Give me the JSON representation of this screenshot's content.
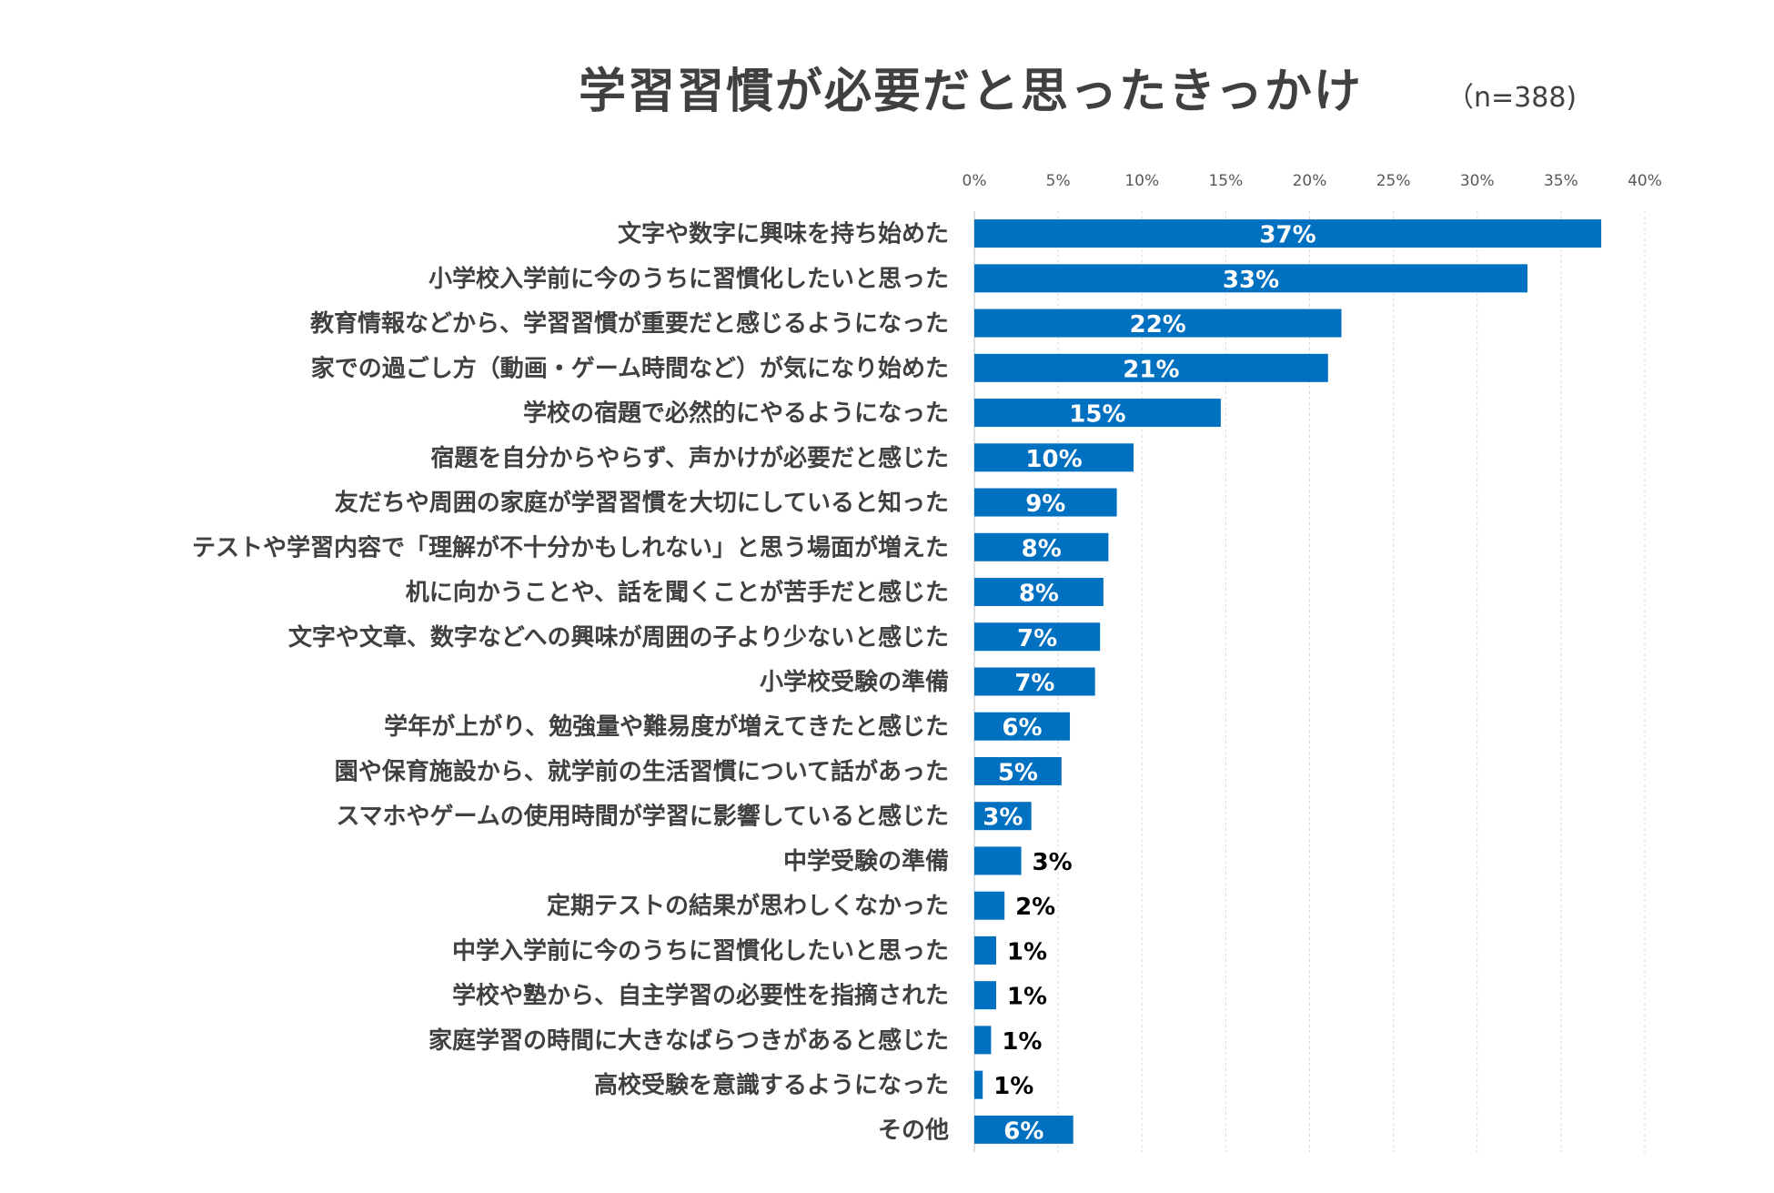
{
  "chart_data": {
    "type": "bar",
    "orientation": "horizontal",
    "title": "学習習慣が必要だと思ったきっかけ",
    "subtitle": "（n=388)",
    "xlim": [
      0,
      40
    ],
    "x_ticks": [
      "0%",
      "5%",
      "10%",
      "15%",
      "20%",
      "25%",
      "30%",
      "35%",
      "40%"
    ],
    "grid": true,
    "bar_color": "#0070C0",
    "categories": [
      "文字や数字に興味を持ち始めた",
      "小学校入学前に今のうちに習慣化したいと思った",
      "教育情報などから、学習習慣が重要だと感じるようになった",
      "家での過ごし方（動画・ゲーム時間など）が気になり始めた",
      "学校の宿題で必然的にやるようになった",
      "宿題を自分からやらず、声かけが必要だと感じた",
      "友だちや周囲の家庭が学習習慣を大切にしていると知った",
      "テストや学習内容で「理解が不十分かもしれない」と思う場面が増えた",
      "机に向かうことや、話を聞くことが苦手だと感じた",
      "文字や文章、数字などへの興味が周囲の子より少ないと感じた",
      "小学校受験の準備",
      "学年が上がり、勉強量や難易度が増えてきたと感じた",
      "園や保育施設から、就学前の生活習慣について話があった",
      "スマホやゲームの使用時間が学習に影響していると感じた",
      "中学受験の準備",
      "定期テストの結果が思わしくなかった",
      "中学入学前に今のうちに習慣化したいと思った",
      "学校や塾から、自主学習の必要性を指摘された",
      "家庭学習の時間に大きなばらつきがあると感じた",
      "高校受験を意識するようになった",
      "その他"
    ],
    "values": [
      37.4,
      33.0,
      21.9,
      21.1,
      14.7,
      9.5,
      8.5,
      8.0,
      7.7,
      7.5,
      7.2,
      5.7,
      5.2,
      3.4,
      2.8,
      1.8,
      1.3,
      1.3,
      1.0,
      0.5,
      5.9
    ],
    "value_labels": [
      "37%",
      "33%",
      "22%",
      "21%",
      "15%",
      "10%",
      "9%",
      "8%",
      "8%",
      "7%",
      "7%",
      "6%",
      "5%",
      "3%",
      "3%",
      "2%",
      "1%",
      "1%",
      "1%",
      "1%",
      "6%"
    ]
  }
}
